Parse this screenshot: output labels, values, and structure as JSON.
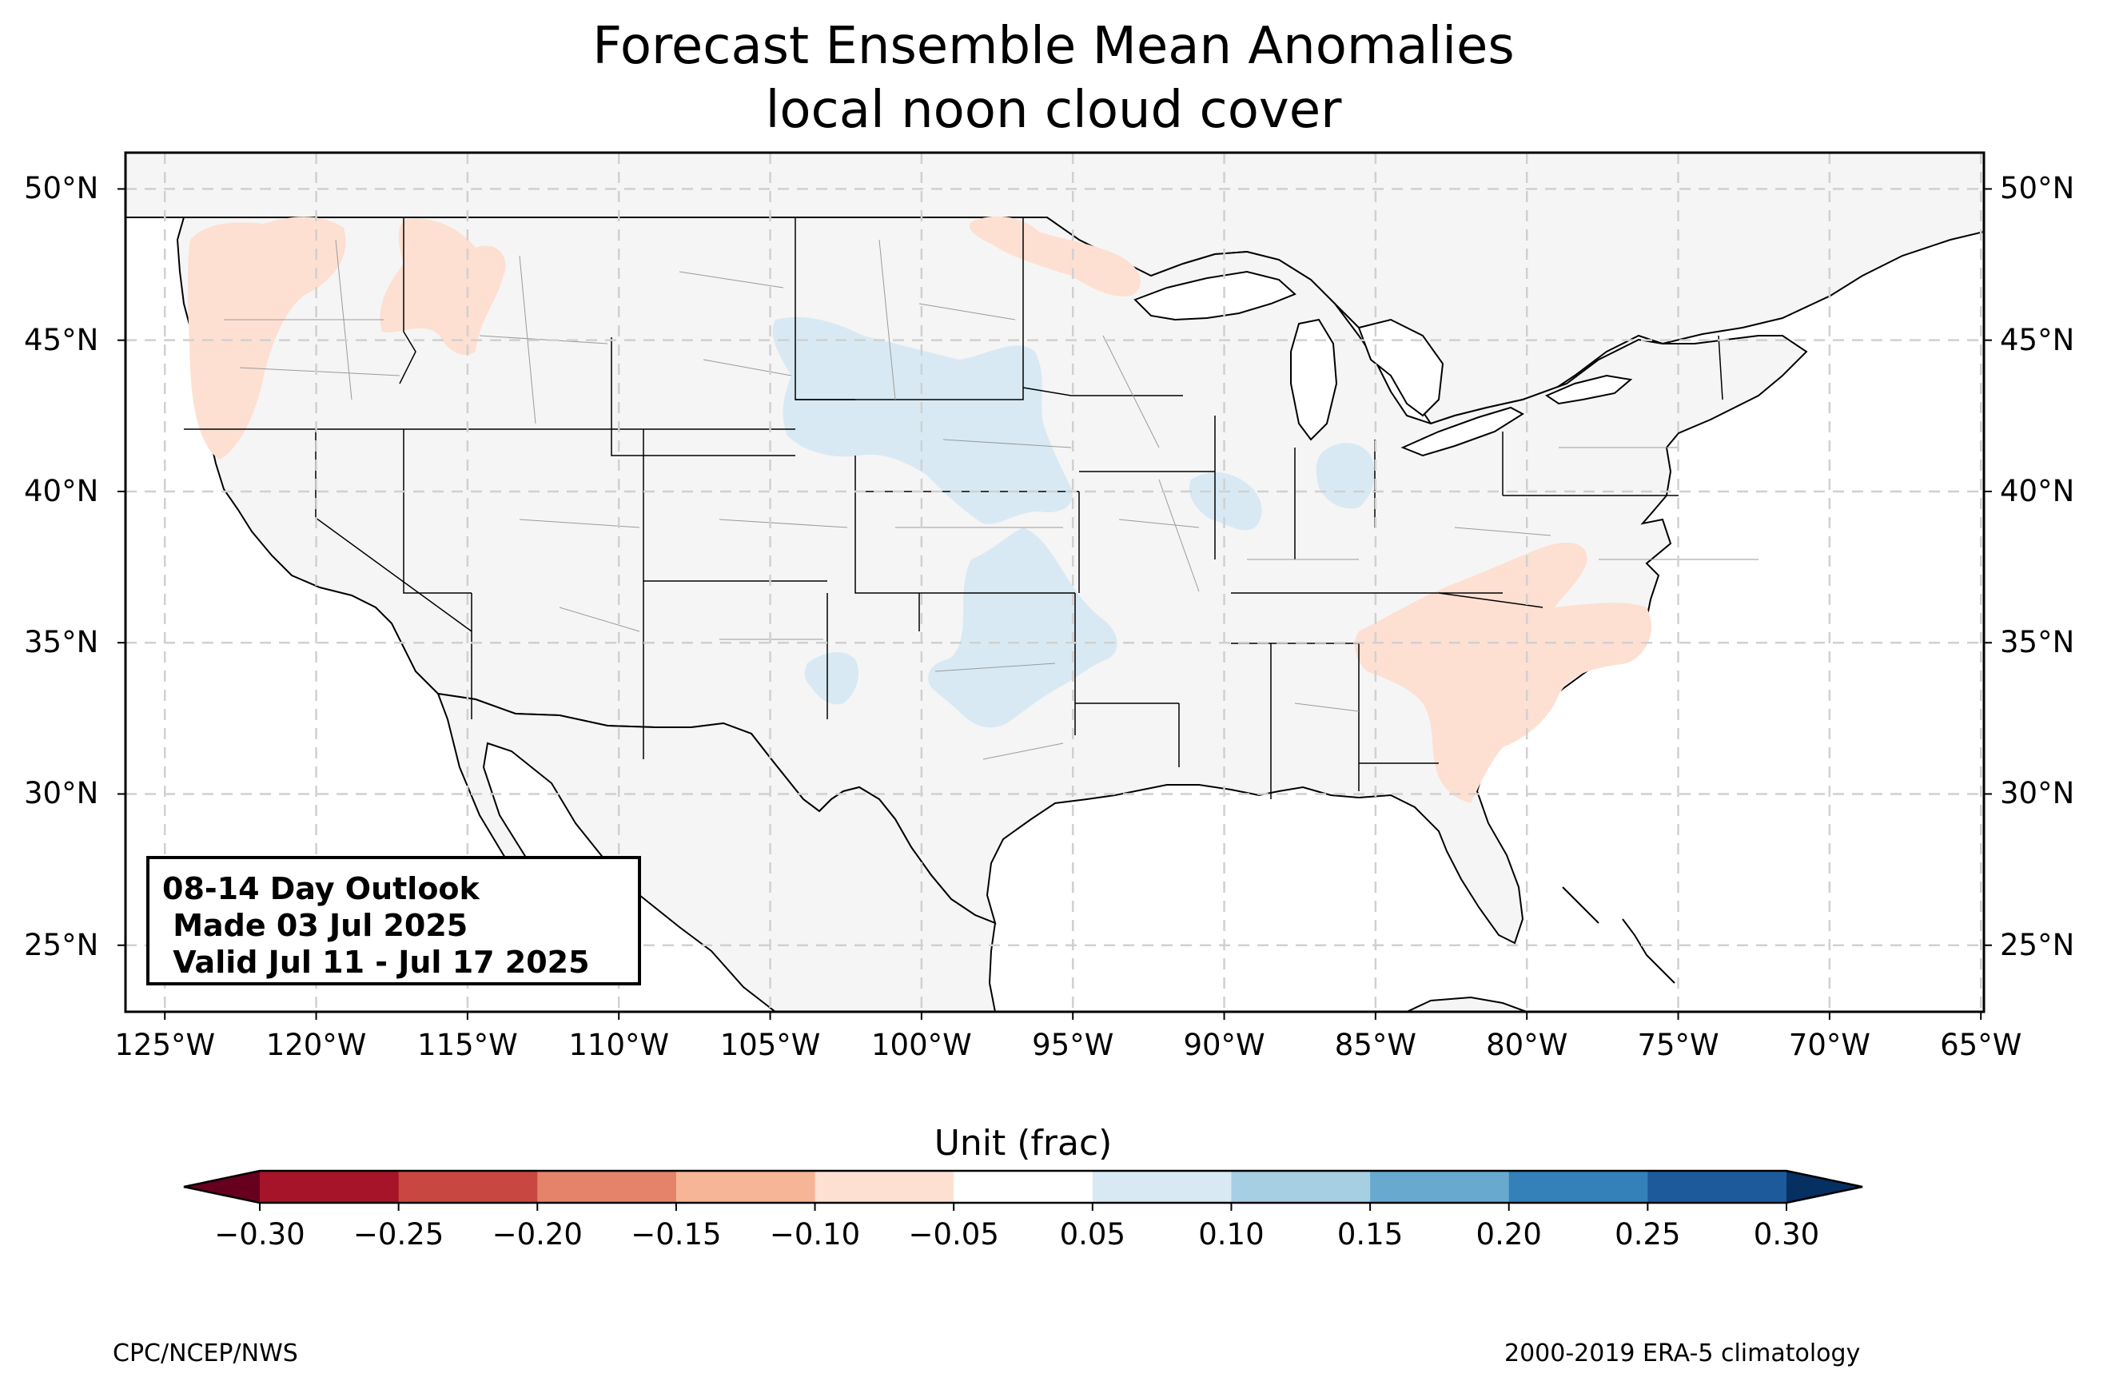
{
  "title": {
    "line1": "Forecast Ensemble Mean Anomalies",
    "line2": "local noon cloud cover"
  },
  "map": {
    "extent": {
      "lon": [
        -126.3,
        -64.9
      ],
      "lat": [
        22.8,
        51.2
      ]
    },
    "ocean_color": "#ffffff",
    "land_color": "#f5f5f5",
    "gridline_color": "#d0d0d0",
    "lat_ticks": [
      "50°N",
      "45°N",
      "40°N",
      "35°N",
      "30°N",
      "25°N"
    ],
    "lat_values": [
      50,
      45,
      40,
      35,
      30,
      25
    ],
    "lon_ticks": [
      "125°W",
      "120°W",
      "115°W",
      "110°W",
      "105°W",
      "100°W",
      "95°W",
      "90°W",
      "85°W",
      "80°W",
      "75°W",
      "70°W",
      "65°W"
    ],
    "lon_values": [
      -125,
      -120,
      -115,
      -110,
      -105,
      -100,
      -95,
      -90,
      -85,
      -80,
      -75,
      -70,
      -65
    ]
  },
  "anomaly_regions": [
    {
      "region": "Pacific Northwest",
      "class": "-0.10 to -0.05",
      "color": "#fde0d2"
    },
    {
      "region": "Northern Idaho",
      "class": "-0.10 to -0.05",
      "color": "#fde0d2"
    },
    {
      "region": "North Dakota / Minnesota border",
      "class": "-0.10 to -0.05",
      "color": "#fde0d2"
    },
    {
      "region": "Southern Appalachians and Carolinas",
      "class": "-0.10 to -0.05",
      "color": "#fde0d2"
    },
    {
      "region": "Central Plains",
      "class": "0.05 to 0.10",
      "color": "#d8e9f3"
    },
    {
      "region": "Southern Plains and Oklahoma",
      "class": "0.05 to 0.10",
      "color": "#d8e9f3"
    },
    {
      "region": "Illinois / Indiana",
      "class": "0.05 to 0.10",
      "color": "#d8e9f3"
    }
  ],
  "outlook_box": {
    "line1": "08-14 Day Outlook",
    "line2": " Made 03 Jul 2025",
    "line3": " Valid Jul 11 - Jul 17 2025"
  },
  "colorbar": {
    "label": "Unit (frac)",
    "ticks": [
      "−0.30",
      "−0.25",
      "−0.20",
      "−0.15",
      "−0.10",
      "−0.05",
      "0.05",
      "0.10",
      "0.15",
      "0.20",
      "0.25",
      "0.30"
    ],
    "bounds": [
      -0.3,
      -0.25,
      -0.2,
      -0.15,
      -0.1,
      -0.05,
      0.05,
      0.1,
      0.15,
      0.2,
      0.25,
      0.3
    ],
    "under_color": "#67001f",
    "over_color": "#053061",
    "colors": [
      "#a51429",
      "#c94741",
      "#e4826a",
      "#f6b596",
      "#fde0d2",
      "#ffffff",
      "#d8e9f3",
      "#a6cfe4",
      "#68a9d0",
      "#3480b9",
      "#1c5a9b"
    ]
  },
  "footer": {
    "left": "CPC/NCEP/NWS",
    "right": "2000-2019 ERA-5 climatology"
  }
}
